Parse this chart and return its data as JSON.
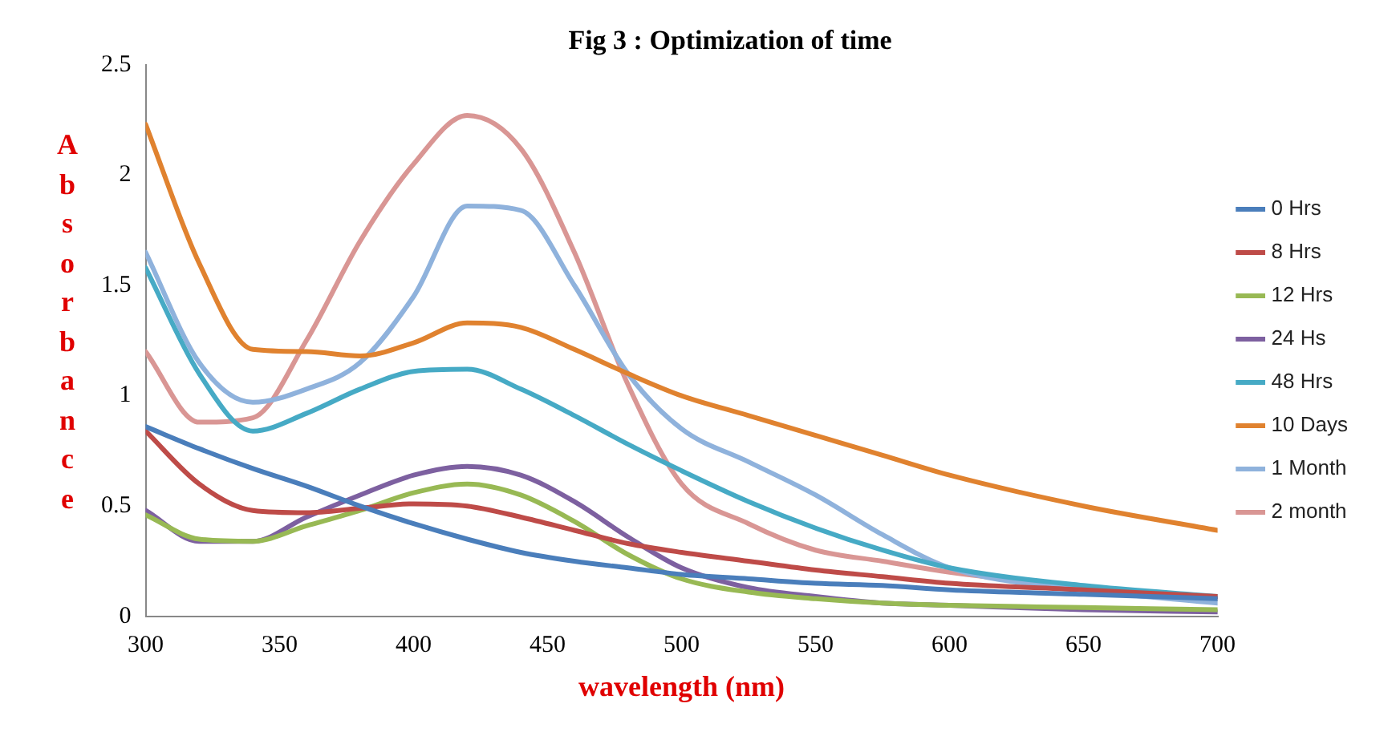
{
  "chart_data": {
    "type": "line",
    "title": "Fig 3 : Optimization of time",
    "xlabel": "wavelength (nm)",
    "ylabel": "Absorbance",
    "x": [
      300,
      320,
      340,
      360,
      380,
      400,
      420,
      440,
      460,
      480,
      500,
      525,
      550,
      575,
      600,
      650,
      700
    ],
    "xlim": [
      300,
      700
    ],
    "xticks": [
      300,
      350,
      400,
      450,
      500,
      550,
      600,
      650,
      700
    ],
    "ylim": [
      0,
      2.5
    ],
    "yticks": [
      0,
      0.5,
      1,
      1.5,
      2,
      2.5
    ],
    "grid": false,
    "legend": "right",
    "marker": "none",
    "line_style": "solid",
    "series": [
      {
        "name": "0 Hrs",
        "color": "#4a7ebb",
        "values": [
          0.86,
          0.76,
          0.67,
          0.59,
          0.5,
          0.42,
          0.35,
          0.29,
          0.25,
          0.22,
          0.19,
          0.17,
          0.15,
          0.14,
          0.12,
          0.1,
          0.08
        ]
      },
      {
        "name": "8 Hrs",
        "color": "#be4b48",
        "values": [
          0.84,
          0.6,
          0.48,
          0.47,
          0.49,
          0.51,
          0.5,
          0.45,
          0.39,
          0.33,
          0.29,
          0.25,
          0.21,
          0.18,
          0.15,
          0.12,
          0.09
        ]
      },
      {
        "name": "12 Hrs",
        "color": "#98b954",
        "values": [
          0.46,
          0.35,
          0.34,
          0.41,
          0.48,
          0.56,
          0.6,
          0.55,
          0.43,
          0.28,
          0.17,
          0.11,
          0.08,
          0.06,
          0.05,
          0.04,
          0.03
        ]
      },
      {
        "name": "24 Hs",
        "color": "#7d60a0",
        "values": [
          0.48,
          0.34,
          0.34,
          0.45,
          0.55,
          0.64,
          0.68,
          0.64,
          0.52,
          0.36,
          0.22,
          0.13,
          0.09,
          0.06,
          0.05,
          0.03,
          0.02
        ]
      },
      {
        "name": "48 Hrs",
        "color": "#46aac5",
        "values": [
          1.58,
          1.1,
          0.84,
          0.92,
          1.03,
          1.11,
          1.12,
          1.03,
          0.91,
          0.78,
          0.66,
          0.52,
          0.4,
          0.3,
          0.22,
          0.14,
          0.09
        ]
      },
      {
        "name": "10 Days",
        "color": "#e0822f",
        "values": [
          2.23,
          1.6,
          1.21,
          1.2,
          1.18,
          1.24,
          1.33,
          1.31,
          1.21,
          1.1,
          1,
          0.91,
          0.82,
          0.73,
          0.64,
          0.5,
          0.39
        ]
      },
      {
        "name": "1 Month",
        "color": "#8fb2dc",
        "values": [
          1.65,
          1.15,
          0.97,
          1.03,
          1.15,
          1.45,
          1.86,
          1.84,
          1.5,
          1.1,
          0.85,
          0.7,
          0.55,
          0.37,
          0.22,
          0.12,
          0.06
        ]
      },
      {
        "name": "2 month",
        "color": "#d99694",
        "values": [
          1.2,
          0.88,
          0.9,
          1.25,
          1.7,
          2.05,
          2.27,
          2.12,
          1.65,
          1.05,
          0.6,
          0.42,
          0.3,
          0.25,
          0.2,
          null,
          0.08
        ]
      }
    ]
  }
}
